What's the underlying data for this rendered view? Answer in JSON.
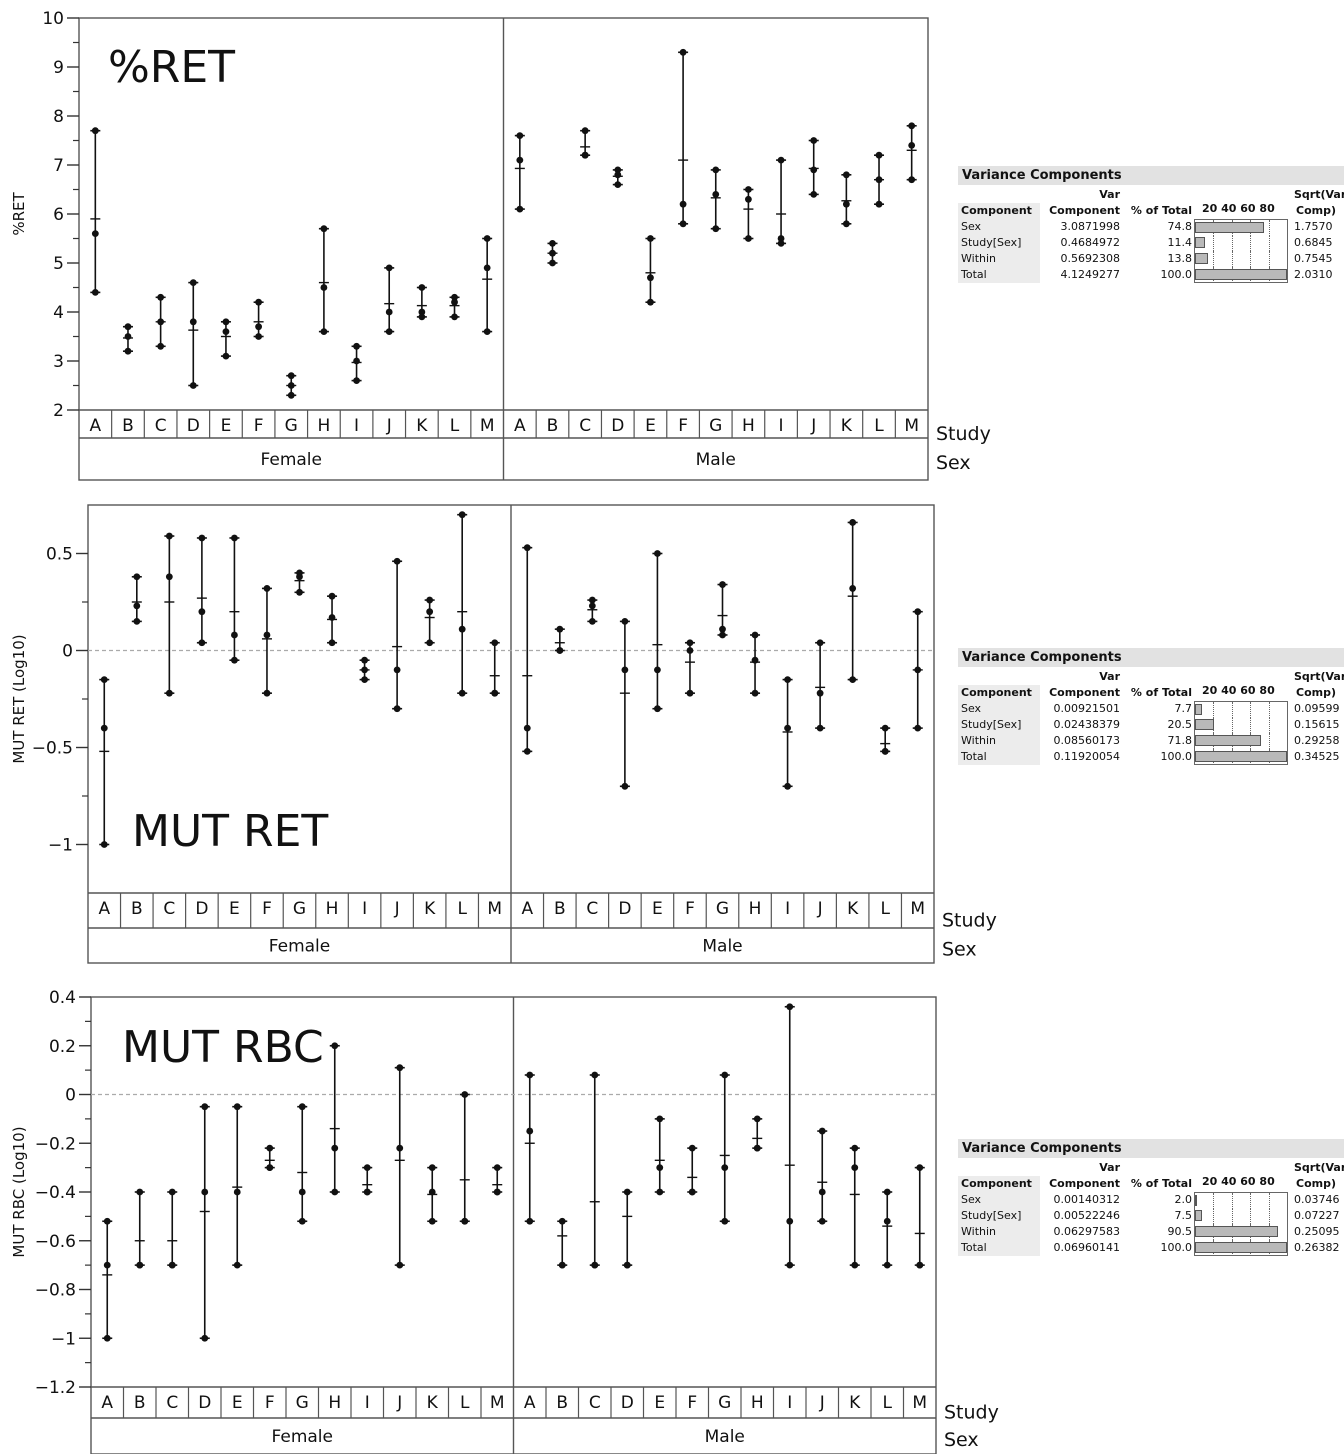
{
  "labels": {
    "study": "Study",
    "sex": "Sex",
    "female": "Female",
    "male": "Male"
  },
  "variance_tables": [
    {
      "title": "Variance Components",
      "header": {
        "component": "Component",
        "var_line1": "Var",
        "var_line2": "Component",
        "pct": "% of Total",
        "scale": "20 40 60 80",
        "sqrt_line1": "Sqrt(Var",
        "sqrt_line2": "Comp)"
      },
      "rows": [
        {
          "component": "Sex",
          "var": "3.0871998",
          "pct": "74.8",
          "pct_value": 74.8,
          "sqrt": "1.7570"
        },
        {
          "component": "Study[Sex]",
          "var": "0.4684972",
          "pct": "11.4",
          "pct_value": 11.4,
          "sqrt": "0.6845"
        },
        {
          "component": "Within",
          "var": "0.5692308",
          "pct": "13.8",
          "pct_value": 13.8,
          "sqrt": "0.7545"
        },
        {
          "component": "Total",
          "var": "4.1249277",
          "pct": "100.0",
          "pct_value": 100.0,
          "sqrt": "2.0310"
        }
      ]
    },
    {
      "title": "Variance Components",
      "header": {
        "component": "Component",
        "var_line1": "Var",
        "var_line2": "Component",
        "pct": "% of Total",
        "scale": "20 40 60 80",
        "sqrt_line1": "Sqrt(Var",
        "sqrt_line2": "Comp)"
      },
      "rows": [
        {
          "component": "Sex",
          "var": "0.00921501",
          "pct": "7.7",
          "pct_value": 7.7,
          "sqrt": "0.09599"
        },
        {
          "component": "Study[Sex]",
          "var": "0.02438379",
          "pct": "20.5",
          "pct_value": 20.5,
          "sqrt": "0.15615"
        },
        {
          "component": "Within",
          "var": "0.08560173",
          "pct": "71.8",
          "pct_value": 71.8,
          "sqrt": "0.29258"
        },
        {
          "component": "Total",
          "var": "0.11920054",
          "pct": "100.0",
          "pct_value": 100.0,
          "sqrt": "0.34525"
        }
      ]
    },
    {
      "title": "Variance Components",
      "header": {
        "component": "Component",
        "var_line1": "Var",
        "var_line2": "Component",
        "pct": "% of Total",
        "scale": "20 40 60 80",
        "sqrt_line1": "Sqrt(Var",
        "sqrt_line2": "Comp)"
      },
      "rows": [
        {
          "component": "Sex",
          "var": "0.00140312",
          "pct": "2.0",
          "pct_value": 2.0,
          "sqrt": "0.03746"
        },
        {
          "component": "Study[Sex]",
          "var": "0.00522246",
          "pct": "7.5",
          "pct_value": 7.5,
          "sqrt": "0.07227"
        },
        {
          "component": "Within",
          "var": "0.06297583",
          "pct": "90.5",
          "pct_value": 90.5,
          "sqrt": "0.25095"
        },
        {
          "component": "Total",
          "var": "0.06960141",
          "pct": "100.0",
          "pct_value": 100.0,
          "sqrt": "0.26382"
        }
      ]
    }
  ],
  "chart_data": [
    {
      "type": "scatter",
      "title": "%RET",
      "ylabel": "%RET",
      "ylim": [
        2,
        10
      ],
      "yticks": [
        2,
        3,
        4,
        5,
        6,
        7,
        8,
        9,
        10
      ],
      "ytick_labels": [
        "2",
        "3",
        "4",
        "5",
        "6",
        "7",
        "8",
        "9",
        "10"
      ],
      "zero_line": false,
      "groups": [
        {
          "sex": "Female",
          "studies": [
            {
              "study": "A",
              "points": [
                7.7,
                5.6,
                4.4
              ],
              "mean": 5.9
            },
            {
              "study": "B",
              "points": [
                3.7,
                3.5,
                3.2
              ],
              "mean": 3.47
            },
            {
              "study": "C",
              "points": [
                4.3,
                3.8,
                3.3
              ],
              "mean": 3.8
            },
            {
              "study": "D",
              "points": [
                4.6,
                3.8,
                2.5
              ],
              "mean": 3.63
            },
            {
              "study": "E",
              "points": [
                3.8,
                3.6,
                3.1
              ],
              "mean": 3.5
            },
            {
              "study": "F",
              "points": [
                4.2,
                3.7,
                3.5
              ],
              "mean": 3.8
            },
            {
              "study": "G",
              "points": [
                2.7,
                2.5,
                2.3
              ],
              "mean": 2.5
            },
            {
              "study": "H",
              "points": [
                5.7,
                4.5,
                3.6
              ],
              "mean": 4.6
            },
            {
              "study": "I",
              "points": [
                3.3,
                3.0,
                2.6
              ],
              "mean": 2.97
            },
            {
              "study": "J",
              "points": [
                4.9,
                4.0,
                3.6
              ],
              "mean": 4.17
            },
            {
              "study": "K",
              "points": [
                4.5,
                4.0,
                3.9
              ],
              "mean": 4.13
            },
            {
              "study": "L",
              "points": [
                4.3,
                4.2,
                3.9
              ],
              "mean": 4.13
            },
            {
              "study": "M",
              "points": [
                5.5,
                4.9,
                3.6
              ],
              "mean": 4.67
            }
          ]
        },
        {
          "sex": "Male",
          "studies": [
            {
              "study": "A",
              "points": [
                7.6,
                7.1,
                6.1
              ],
              "mean": 6.93
            },
            {
              "study": "B",
              "points": [
                5.4,
                5.2,
                5.0
              ],
              "mean": 5.2
            },
            {
              "study": "C",
              "points": [
                7.7,
                7.2,
                7.2
              ],
              "mean": 7.37
            },
            {
              "study": "D",
              "points": [
                6.9,
                6.8,
                6.6
              ],
              "mean": 6.77
            },
            {
              "study": "E",
              "points": [
                5.5,
                4.7,
                4.2
              ],
              "mean": 4.8
            },
            {
              "study": "F",
              "points": [
                9.3,
                6.2,
                5.8
              ],
              "mean": 7.1
            },
            {
              "study": "G",
              "points": [
                6.9,
                6.4,
                5.7
              ],
              "mean": 6.33
            },
            {
              "study": "H",
              "points": [
                6.5,
                6.3,
                5.5
              ],
              "mean": 6.1
            },
            {
              "study": "I",
              "points": [
                7.1,
                5.5,
                5.4
              ],
              "mean": 6.0
            },
            {
              "study": "J",
              "points": [
                7.5,
                6.9,
                6.4
              ],
              "mean": 6.93
            },
            {
              "study": "K",
              "points": [
                6.8,
                6.2,
                5.8
              ],
              "mean": 6.27
            },
            {
              "study": "L",
              "points": [
                7.2,
                6.7,
                6.2
              ],
              "mean": 6.7
            },
            {
              "study": "M",
              "points": [
                7.8,
                7.4,
                6.7
              ],
              "mean": 7.3
            }
          ]
        }
      ]
    },
    {
      "type": "scatter",
      "title": "MUT RET",
      "ylabel": "MUT RET (Log10)",
      "ylim": [
        -1.25,
        0.75
      ],
      "yticks": [
        -1,
        -0.5,
        0,
        0.5
      ],
      "ytick_labels": [
        "−1",
        "−0.5",
        "0",
        "0.5"
      ],
      "zero_line": true,
      "groups": [
        {
          "sex": "Female",
          "studies": [
            {
              "study": "A",
              "points": [
                -0.15,
                -0.4,
                -1.0
              ],
              "mean": -0.52
            },
            {
              "study": "B",
              "points": [
                0.38,
                0.23,
                0.15
              ],
              "mean": 0.25
            },
            {
              "study": "C",
              "points": [
                0.59,
                0.38,
                -0.22
              ],
              "mean": 0.25
            },
            {
              "study": "D",
              "points": [
                0.58,
                0.2,
                0.04
              ],
              "mean": 0.27
            },
            {
              "study": "E",
              "points": [
                0.58,
                0.08,
                -0.05
              ],
              "mean": 0.2
            },
            {
              "study": "F",
              "points": [
                0.32,
                0.08,
                -0.22
              ],
              "mean": 0.06
            },
            {
              "study": "G",
              "points": [
                0.4,
                0.38,
                0.3
              ],
              "mean": 0.36
            },
            {
              "study": "H",
              "points": [
                0.28,
                0.17,
                0.04
              ],
              "mean": 0.16
            },
            {
              "study": "I",
              "points": [
                -0.05,
                -0.1,
                -0.15
              ],
              "mean": -0.1
            },
            {
              "study": "J",
              "points": [
                0.46,
                -0.1,
                -0.3
              ],
              "mean": 0.02
            },
            {
              "study": "K",
              "points": [
                0.26,
                0.2,
                0.04
              ],
              "mean": 0.17
            },
            {
              "study": "L",
              "points": [
                0.7,
                0.11,
                -0.22
              ],
              "mean": 0.2
            },
            {
              "study": "M",
              "points": [
                0.04,
                -0.22,
                -0.22
              ],
              "mean": -0.13
            }
          ]
        },
        {
          "sex": "Male",
          "studies": [
            {
              "study": "A",
              "points": [
                0.53,
                -0.4,
                -0.52
              ],
              "mean": -0.13
            },
            {
              "study": "B",
              "points": [
                0.11,
                0.0,
                0.0
              ],
              "mean": 0.04
            },
            {
              "study": "C",
              "points": [
                0.26,
                0.23,
                0.15
              ],
              "mean": 0.21
            },
            {
              "study": "D",
              "points": [
                0.15,
                -0.1,
                -0.7
              ],
              "mean": -0.22
            },
            {
              "study": "E",
              "points": [
                0.5,
                -0.1,
                -0.3
              ],
              "mean": 0.03
            },
            {
              "study": "F",
              "points": [
                0.04,
                0.0,
                -0.22
              ],
              "mean": -0.06
            },
            {
              "study": "G",
              "points": [
                0.34,
                0.11,
                0.08
              ],
              "mean": 0.18
            },
            {
              "study": "H",
              "points": [
                0.08,
                -0.05,
                -0.22
              ],
              "mean": -0.06
            },
            {
              "study": "I",
              "points": [
                -0.15,
                -0.4,
                -0.7
              ],
              "mean": -0.42
            },
            {
              "study": "J",
              "points": [
                0.04,
                -0.22,
                -0.4
              ],
              "mean": -0.19
            },
            {
              "study": "K",
              "points": [
                0.66,
                0.32,
                -0.15
              ],
              "mean": 0.28
            },
            {
              "study": "L",
              "points": [
                -0.4,
                -0.52,
                -0.52
              ],
              "mean": -0.48
            },
            {
              "study": "M",
              "points": [
                0.2,
                -0.1,
                -0.4
              ],
              "mean": -0.1
            }
          ]
        }
      ]
    },
    {
      "type": "scatter",
      "title": "MUT RBC",
      "ylabel": "MUT RBC (Log10)",
      "ylim": [
        -1.2,
        0.4
      ],
      "yticks": [
        -1.2,
        -1,
        -0.8,
        -0.6,
        -0.4,
        -0.2,
        0,
        0.2,
        0.4
      ],
      "ytick_labels": [
        "−1.2",
        "−1",
        "−0.8",
        "−0.6",
        "−0.4",
        "−0.2",
        "0",
        "0.2",
        "0.4"
      ],
      "zero_line": true,
      "groups": [
        {
          "sex": "Female",
          "studies": [
            {
              "study": "A",
              "points": [
                -0.52,
                -0.7,
                -1.0
              ],
              "mean": -0.74
            },
            {
              "study": "B",
              "points": [
                -0.4,
                -0.7,
                -0.7
              ],
              "mean": -0.6
            },
            {
              "study": "C",
              "points": [
                -0.4,
                -0.7,
                -0.7
              ],
              "mean": -0.6
            },
            {
              "study": "D",
              "points": [
                -0.05,
                -0.4,
                -1.0
              ],
              "mean": -0.48
            },
            {
              "study": "E",
              "points": [
                -0.05,
                -0.4,
                -0.7
              ],
              "mean": -0.38
            },
            {
              "study": "F",
              "points": [
                -0.22,
                -0.3,
                -0.3
              ],
              "mean": -0.27
            },
            {
              "study": "G",
              "points": [
                -0.05,
                -0.4,
                -0.52
              ],
              "mean": -0.32
            },
            {
              "study": "H",
              "points": [
                0.2,
                -0.22,
                -0.4
              ],
              "mean": -0.14
            },
            {
              "study": "I",
              "points": [
                -0.3,
                -0.4,
                -0.4
              ],
              "mean": -0.37
            },
            {
              "study": "J",
              "points": [
                0.11,
                -0.22,
                -0.7
              ],
              "mean": -0.27
            },
            {
              "study": "K",
              "points": [
                -0.3,
                -0.4,
                -0.52
              ],
              "mean": -0.41
            },
            {
              "study": "L",
              "points": [
                0.0,
                -0.52,
                -0.52
              ],
              "mean": -0.35
            },
            {
              "study": "M",
              "points": [
                -0.3,
                -0.4,
                -0.4
              ],
              "mean": -0.37
            }
          ]
        },
        {
          "sex": "Male",
          "studies": [
            {
              "study": "A",
              "points": [
                0.08,
                -0.15,
                -0.52
              ],
              "mean": -0.2
            },
            {
              "study": "B",
              "points": [
                -0.52,
                -0.7,
                -0.7
              ],
              "mean": -0.58
            },
            {
              "study": "C",
              "points": [
                0.08,
                -0.7,
                -0.7
              ],
              "mean": -0.44
            },
            {
              "study": "D",
              "points": [
                -0.4,
                -0.7,
                -0.7
              ],
              "mean": -0.5
            },
            {
              "study": "E",
              "points": [
                -0.1,
                -0.3,
                -0.4
              ],
              "mean": -0.27
            },
            {
              "study": "F",
              "points": [
                -0.22,
                -0.4,
                -0.4
              ],
              "mean": -0.34
            },
            {
              "study": "G",
              "points": [
                0.08,
                -0.3,
                -0.52
              ],
              "mean": -0.25
            },
            {
              "study": "H",
              "points": [
                -0.1,
                -0.22,
                -0.22
              ],
              "mean": -0.18
            },
            {
              "study": "I",
              "points": [
                0.36,
                -0.52,
                -0.7
              ],
              "mean": -0.29
            },
            {
              "study": "J",
              "points": [
                -0.15,
                -0.4,
                -0.52
              ],
              "mean": -0.36
            },
            {
              "study": "K",
              "points": [
                -0.22,
                -0.3,
                -0.7
              ],
              "mean": -0.41
            },
            {
              "study": "L",
              "points": [
                -0.4,
                -0.52,
                -0.7
              ],
              "mean": -0.54
            },
            {
              "study": "M",
              "points": [
                -0.3,
                -0.7,
                -0.7
              ],
              "mean": -0.57
            }
          ]
        }
      ]
    }
  ]
}
